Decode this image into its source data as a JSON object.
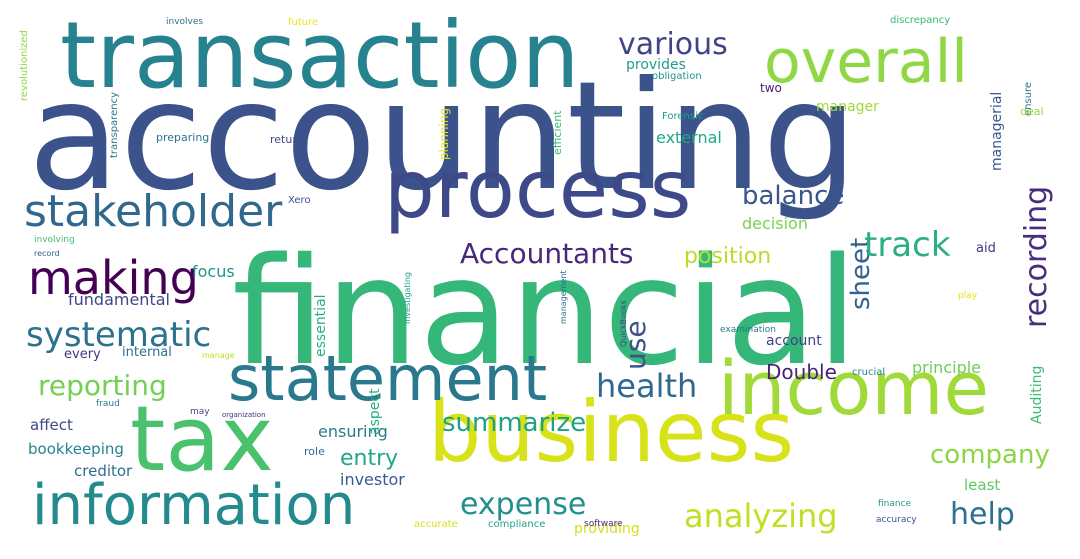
{
  "palette": {
    "navy": "#3b528b",
    "purple": "#472d7b",
    "darkpurple": "#482878",
    "slate": "#3e4989",
    "blue": "#31688e",
    "teal": "#26828e",
    "tealgreen": "#1f9e89",
    "green": "#35b779",
    "lightgreen": "#6ece58",
    "lime": "#b5de2b",
    "yellow": "#fde725"
  },
  "words": [
    {
      "id": "accounting",
      "text": "accounting",
      "color": "#3b528b"
    },
    {
      "id": "financial",
      "text": "financial",
      "color": "#35b779"
    },
    {
      "id": "transaction",
      "text": "transaction",
      "color": "#26828e"
    },
    {
      "id": "process",
      "text": "process",
      "color": "#3e4989"
    },
    {
      "id": "business",
      "text": "business",
      "color": "#d8e219"
    },
    {
      "id": "tax",
      "text": "tax",
      "color": "#4ac16d"
    },
    {
      "id": "income",
      "text": "income",
      "color": "#a0da39"
    },
    {
      "id": "statement",
      "text": "statement",
      "color": "#2a788e"
    },
    {
      "id": "information",
      "text": "information",
      "color": "#238a8d"
    },
    {
      "id": "overall",
      "text": "overall",
      "color": "#8fd744"
    },
    {
      "id": "stakeholder",
      "text": "stakeholder",
      "color": "#31688e"
    },
    {
      "id": "making",
      "text": "making",
      "color": "#440154"
    },
    {
      "id": "systematic",
      "text": "systematic",
      "color": "#2c728e"
    },
    {
      "id": "reporting",
      "text": "reporting",
      "color": "#73d056"
    },
    {
      "id": "recording",
      "text": "recording",
      "color": "#472d7b"
    },
    {
      "id": "accountants",
      "text": "Accountants",
      "color": "#482878"
    },
    {
      "id": "various",
      "text": "various",
      "color": "#414487"
    },
    {
      "id": "balance",
      "text": "balance",
      "color": "#39568c"
    },
    {
      "id": "sheet",
      "text": "sheet",
      "color": "#33638d"
    },
    {
      "id": "track",
      "text": "track",
      "color": "#2ab07f"
    },
    {
      "id": "health",
      "text": "health",
      "color": "#31688e"
    },
    {
      "id": "analyzing",
      "text": "analyzing",
      "color": "#c2df23"
    },
    {
      "id": "expense",
      "text": "expense",
      "color": "#21918c"
    },
    {
      "id": "summarize",
      "text": "summarize",
      "color": "#1fa187"
    },
    {
      "id": "help",
      "text": "help",
      "color": "#2c728e"
    },
    {
      "id": "company",
      "text": "company",
      "color": "#8bd646"
    },
    {
      "id": "use",
      "text": "use",
      "color": "#3b528b"
    },
    {
      "id": "position",
      "text": "position",
      "color": "#b5de2b"
    },
    {
      "id": "double",
      "text": "Double",
      "color": "#482475"
    },
    {
      "id": "entry",
      "text": "entry",
      "color": "#21a685"
    },
    {
      "id": "focus",
      "text": "focus",
      "color": "#1f968b"
    },
    {
      "id": "decision",
      "text": "decision",
      "color": "#7ad151"
    },
    {
      "id": "fundamental",
      "text": "fundamental",
      "color": "#3f4788"
    },
    {
      "id": "account",
      "text": "account",
      "color": "#423f85"
    },
    {
      "id": "principle",
      "text": "principle",
      "color": "#6ece58"
    },
    {
      "id": "external",
      "text": "external",
      "color": "#22a884"
    },
    {
      "id": "provides",
      "text": "provides",
      "color": "#1f9e89"
    },
    {
      "id": "manager",
      "text": "manager",
      "color": "#9fda3a"
    },
    {
      "id": "managerial",
      "text": "managerial",
      "color": "#375b8d"
    },
    {
      "id": "internal",
      "text": "internal",
      "color": "#2d708e"
    },
    {
      "id": "every",
      "text": "every",
      "color": "#453882"
    },
    {
      "id": "ensuring",
      "text": "ensuring",
      "color": "#287c8e"
    },
    {
      "id": "investor",
      "text": "investor",
      "color": "#365c8d"
    },
    {
      "id": "creditor",
      "text": "creditor",
      "color": "#2f6c8e"
    },
    {
      "id": "bookkeeping",
      "text": "bookkeeping",
      "color": "#25848e"
    },
    {
      "id": "affect",
      "text": "affect",
      "color": "#3e4a89"
    },
    {
      "id": "essential",
      "text": "essential",
      "color": "#29af7f"
    },
    {
      "id": "aspect",
      "text": "aspect",
      "color": "#26ad81"
    },
    {
      "id": "providing",
      "text": "providing",
      "color": "#d2e21b"
    },
    {
      "id": "least",
      "text": "least",
      "color": "#5cc863"
    },
    {
      "id": "auditing",
      "text": "Auditing",
      "color": "#3dbc74"
    },
    {
      "id": "role",
      "text": "role",
      "color": "#2e6e8e"
    },
    {
      "id": "aid",
      "text": "aid",
      "color": "#46337e"
    },
    {
      "id": "two",
      "text": "two",
      "color": "#482173"
    },
    {
      "id": "efficient",
      "text": "efficient",
      "color": "#3aba76"
    },
    {
      "id": "forensic",
      "text": "Forensic",
      "color": "#1e9b8a"
    },
    {
      "id": "obligation",
      "text": "obligation",
      "color": "#1f948c"
    },
    {
      "id": "preparing",
      "text": "preparing",
      "color": "#2a788e"
    },
    {
      "id": "return",
      "text": "return",
      "color": "#404688"
    },
    {
      "id": "planning",
      "text": "planning",
      "color": "#e5e419"
    },
    {
      "id": "transparency",
      "text": "transparency",
      "color": "#2a768e"
    },
    {
      "id": "revolutionized",
      "text": "revolutionized",
      "color": "#8fd744"
    },
    {
      "id": "record",
      "text": "record",
      "color": "#33638d"
    },
    {
      "id": "involving",
      "text": "involving",
      "color": "#40bd72"
    },
    {
      "id": "involves",
      "text": "involves",
      "color": "#2d718e"
    },
    {
      "id": "future",
      "text": "future",
      "color": "#eae51a"
    },
    {
      "id": "discrepancy",
      "text": "discrepancy",
      "color": "#37b878"
    },
    {
      "id": "ensure",
      "text": "ensure",
      "color": "#2c738e"
    },
    {
      "id": "deal",
      "text": "deal",
      "color": "#98d83e"
    },
    {
      "id": "xero",
      "text": "Xero",
      "color": "#3b528b"
    },
    {
      "id": "investigating",
      "text": "investigating",
      "color": "#1fa088"
    },
    {
      "id": "management",
      "text": "management",
      "color": "#2e6d8e"
    },
    {
      "id": "quickbooks",
      "text": "QuickBooks",
      "color": "#3e4989"
    },
    {
      "id": "examination",
      "text": "examination",
      "color": "#2a788e"
    },
    {
      "id": "manage",
      "text": "manage",
      "color": "#bddf26"
    },
    {
      "id": "may",
      "text": "may",
      "color": "#404588"
    },
    {
      "id": "organization",
      "text": "organization",
      "color": "#46327e"
    },
    {
      "id": "fraud",
      "text": "fraud",
      "color": "#277f8e"
    },
    {
      "id": "crucial",
      "text": "crucial",
      "color": "#25848e"
    },
    {
      "id": "play",
      "text": "play",
      "color": "#e1e418"
    },
    {
      "id": "accurate",
      "text": "accurate",
      "color": "#d5e21a"
    },
    {
      "id": "compliance",
      "text": "compliance",
      "color": "#20a386"
    },
    {
      "id": "software",
      "text": "software",
      "color": "#46307e"
    },
    {
      "id": "finance",
      "text": "finance",
      "color": "#1e9c89"
    },
    {
      "id": "accuracy",
      "text": "accuracy",
      "color": "#3b528b"
    }
  ]
}
